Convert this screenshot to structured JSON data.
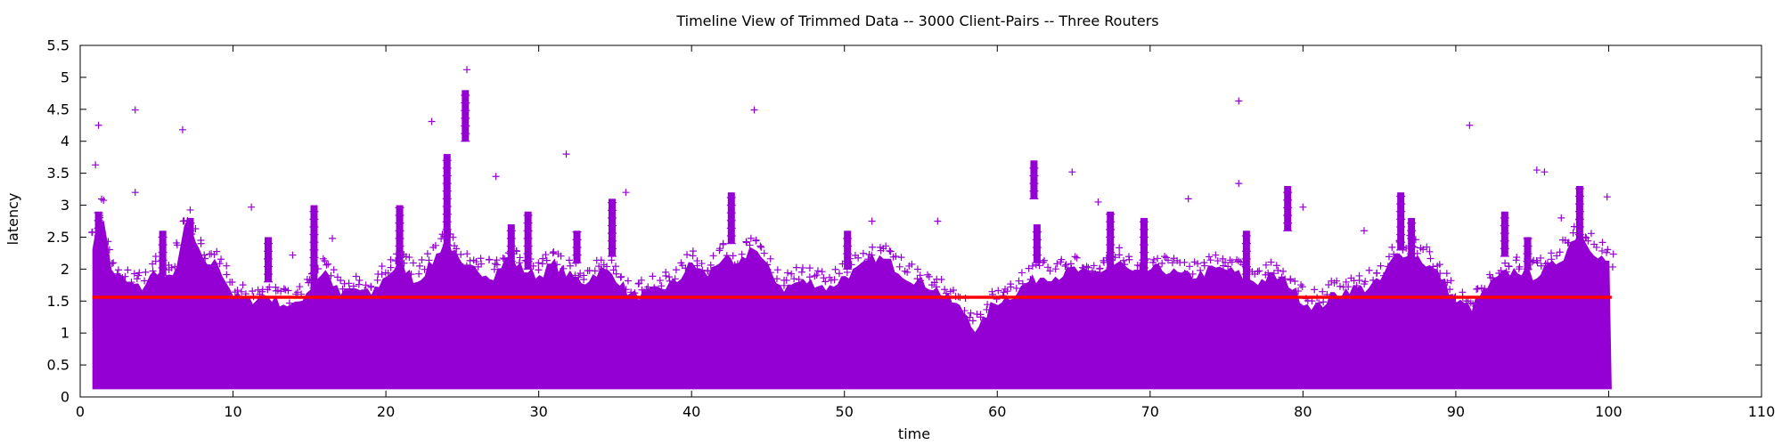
{
  "chart_data": {
    "type": "scatter",
    "title": "Timeline View of Trimmed Data -- 3000 Client-Pairs -- Three Routers",
    "xlabel": "time",
    "ylabel": "latency",
    "xlim": [
      0,
      110
    ],
    "ylim": [
      0,
      5.5
    ],
    "x_ticks": [
      0,
      10,
      20,
      30,
      40,
      50,
      60,
      70,
      80,
      90,
      100,
      110
    ],
    "y_ticks": [
      0,
      0.5,
      1,
      1.5,
      2,
      2.5,
      3,
      3.5,
      4,
      4.5,
      5,
      5.5
    ],
    "grid": false,
    "marker": "+",
    "colors": {
      "points": "#9400d3",
      "mean_line": "#ff0000"
    },
    "series": [
      {
        "kind": "points-band",
        "x_range": [
          0.8,
          100.2
        ],
        "y_floor": 0.12,
        "upper_envelope": [
          [
            0.8,
            2.4
          ],
          [
            1.5,
            2.9
          ],
          [
            2,
            2.0
          ],
          [
            3,
            1.8
          ],
          [
            4,
            1.7
          ],
          [
            5,
            2.0
          ],
          [
            6,
            1.8
          ],
          [
            7,
            2.8
          ],
          [
            8,
            2.1
          ],
          [
            9,
            2.1
          ],
          [
            10,
            1.6
          ],
          [
            11,
            1.5
          ],
          [
            12,
            1.6
          ],
          [
            13,
            1.5
          ],
          [
            14,
            1.4
          ],
          [
            15,
            1.7
          ],
          [
            16,
            2.0
          ],
          [
            17,
            1.6
          ],
          [
            18,
            1.7
          ],
          [
            19,
            1.6
          ],
          [
            20,
            1.9
          ],
          [
            21,
            2.1
          ],
          [
            22,
            1.8
          ],
          [
            23,
            2.1
          ],
          [
            24,
            2.5
          ],
          [
            25,
            2.0
          ],
          [
            26,
            2.0
          ],
          [
            27,
            1.9
          ],
          [
            28,
            2.2
          ],
          [
            29,
            2.0
          ],
          [
            30,
            1.9
          ],
          [
            31,
            2.1
          ],
          [
            32,
            1.9
          ],
          [
            33,
            1.8
          ],
          [
            34,
            2.0
          ],
          [
            35,
            1.9
          ],
          [
            36,
            1.6
          ],
          [
            37,
            1.6
          ],
          [
            38,
            1.7
          ],
          [
            39,
            1.8
          ],
          [
            40,
            2.1
          ],
          [
            41,
            1.9
          ],
          [
            42,
            2.2
          ],
          [
            43,
            2.0
          ],
          [
            44,
            2.4
          ],
          [
            45,
            2.0
          ],
          [
            46,
            1.7
          ],
          [
            47,
            1.8
          ],
          [
            48,
            1.8
          ],
          [
            49,
            1.7
          ],
          [
            50,
            1.9
          ],
          [
            51,
            2.0
          ],
          [
            52,
            2.2
          ],
          [
            53,
            2.1
          ],
          [
            54,
            1.9
          ],
          [
            55,
            1.8
          ],
          [
            56,
            1.7
          ],
          [
            57,
            1.5
          ],
          [
            58,
            1.3
          ],
          [
            58.7,
            1.0
          ],
          [
            59.5,
            1.4
          ],
          [
            60,
            1.5
          ],
          [
            61,
            1.6
          ],
          [
            62,
            1.8
          ],
          [
            63,
            1.9
          ],
          [
            64,
            1.9
          ],
          [
            65,
            2.0
          ],
          [
            66,
            1.9
          ],
          [
            67,
            2.0
          ],
          [
            68,
            2.1
          ],
          [
            69,
            1.9
          ],
          [
            70,
            2.0
          ],
          [
            71,
            2.0
          ],
          [
            72,
            1.9
          ],
          [
            73,
            1.9
          ],
          [
            74,
            2.0
          ],
          [
            75,
            2.0
          ],
          [
            76,
            1.9
          ],
          [
            77,
            1.8
          ],
          [
            78,
            1.9
          ],
          [
            79,
            1.8
          ],
          [
            80,
            1.5
          ],
          [
            81,
            1.4
          ],
          [
            82,
            1.6
          ],
          [
            83,
            1.7
          ],
          [
            84,
            1.7
          ],
          [
            85,
            1.8
          ],
          [
            86,
            2.2
          ],
          [
            87,
            2.3
          ],
          [
            88,
            2.1
          ],
          [
            89,
            1.9
          ],
          [
            90,
            1.5
          ],
          [
            91,
            1.4
          ],
          [
            92,
            1.7
          ],
          [
            93,
            1.9
          ],
          [
            94,
            2.0
          ],
          [
            95,
            1.9
          ],
          [
            96,
            2.0
          ],
          [
            97,
            2.2
          ],
          [
            98,
            2.6
          ],
          [
            99,
            2.3
          ],
          [
            100,
            2.1
          ],
          [
            100.2,
            2.0
          ]
        ],
        "clusters": [
          {
            "x": 1.2,
            "y_range": [
              1.8,
              2.9
            ]
          },
          {
            "x": 5.4,
            "y_range": [
              1.9,
              2.6
            ]
          },
          {
            "x": 7.2,
            "y_range": [
              2.0,
              2.8
            ]
          },
          {
            "x": 12.3,
            "y_range": [
              1.8,
              2.5
            ]
          },
          {
            "x": 15.3,
            "y_range": [
              1.7,
              3.0
            ]
          },
          {
            "x": 20.9,
            "y_range": [
              2.0,
              3.0
            ]
          },
          {
            "x": 24.0,
            "y_range": [
              1.9,
              3.8
            ]
          },
          {
            "x": 25.2,
            "y_range": [
              4.0,
              4.8
            ]
          },
          {
            "x": 28.2,
            "y_range": [
              2.0,
              2.7
            ]
          },
          {
            "x": 29.3,
            "y_range": [
              2.0,
              2.9
            ]
          },
          {
            "x": 32.5,
            "y_range": [
              2.1,
              2.6
            ]
          },
          {
            "x": 34.8,
            "y_range": [
              2.2,
              3.1
            ]
          },
          {
            "x": 42.6,
            "y_range": [
              2.4,
              3.2
            ]
          },
          {
            "x": 50.2,
            "y_range": [
              2.0,
              2.6
            ]
          },
          {
            "x": 62.4,
            "y_range": [
              3.1,
              3.7
            ]
          },
          {
            "x": 62.6,
            "y_range": [
              2.1,
              2.7
            ]
          },
          {
            "x": 67.4,
            "y_range": [
              1.9,
              2.9
            ]
          },
          {
            "x": 69.6,
            "y_range": [
              1.9,
              2.8
            ]
          },
          {
            "x": 76.3,
            "y_range": [
              1.8,
              2.6
            ]
          },
          {
            "x": 79.0,
            "y_range": [
              2.6,
              3.3
            ]
          },
          {
            "x": 86.4,
            "y_range": [
              2.3,
              3.2
            ]
          },
          {
            "x": 87.1,
            "y_range": [
              2.0,
              2.8
            ]
          },
          {
            "x": 93.2,
            "y_range": [
              2.2,
              2.9
            ]
          },
          {
            "x": 94.7,
            "y_range": [
              2.0,
              2.5
            ]
          },
          {
            "x": 98.1,
            "y_range": [
              2.3,
              3.3
            ]
          }
        ],
        "outliers": [
          [
            1.0,
            3.63
          ],
          [
            1.2,
            4.25
          ],
          [
            3.6,
            4.49
          ],
          [
            3.6,
            3.2
          ],
          [
            6.7,
            4.18
          ],
          [
            11.2,
            2.97
          ],
          [
            13.9,
            2.22
          ],
          [
            16.5,
            2.48
          ],
          [
            23.0,
            4.31
          ],
          [
            25.3,
            5.12
          ],
          [
            27.2,
            3.45
          ],
          [
            31.8,
            3.8
          ],
          [
            35.7,
            3.2
          ],
          [
            44.1,
            4.49
          ],
          [
            51.8,
            2.75
          ],
          [
            56.1,
            2.75
          ],
          [
            64.9,
            3.52
          ],
          [
            66.6,
            3.05
          ],
          [
            72.5,
            3.1
          ],
          [
            75.8,
            4.63
          ],
          [
            75.8,
            3.34
          ],
          [
            80.0,
            2.97
          ],
          [
            84.0,
            2.6
          ],
          [
            90.9,
            4.25
          ],
          [
            95.3,
            3.55
          ],
          [
            95.8,
            3.52
          ],
          [
            96.9,
            2.8
          ],
          [
            99.9,
            3.13
          ]
        ]
      },
      {
        "kind": "line",
        "x": [
          0.8,
          100.2
        ],
        "y": [
          1.56,
          1.56
        ]
      }
    ]
  }
}
